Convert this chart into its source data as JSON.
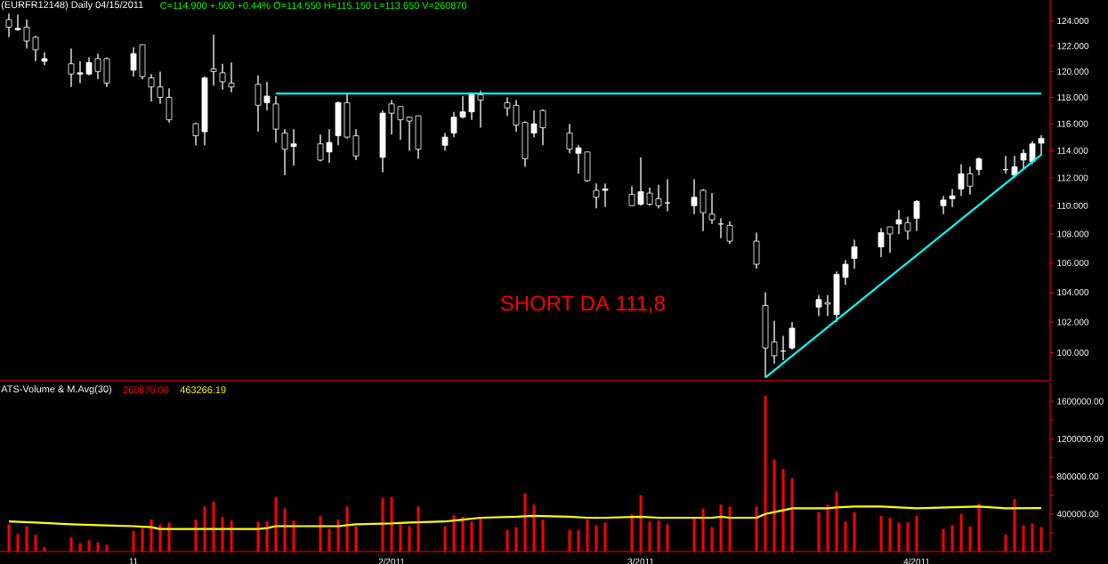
{
  "chart_data": [
    {
      "type": "candlestick",
      "title": "(EURFR12148) Daily   04/15/2011",
      "subtitle": "C=114.900  +.500  +0.44%  O=114.550  H=115.150  L=113.650  V=260870",
      "x": [
        "2010-12-20",
        "2010-12-21",
        "2010-12-22",
        "2010-12-23",
        "2010-12-24",
        "2010-12-27",
        "2010-12-28",
        "2010-12-29",
        "2010-12-30",
        "2010-12-31",
        "2011-01-03",
        "2011-01-04",
        "2011-01-05",
        "2011-01-06",
        "2011-01-07",
        "2011-01-10",
        "2011-01-11",
        "2011-01-12",
        "2011-01-13",
        "2011-01-14",
        "2011-01-17",
        "2011-01-18",
        "2011-01-19",
        "2011-01-20",
        "2011-01-21",
        "2011-01-24",
        "2011-01-25",
        "2011-01-26",
        "2011-01-27",
        "2011-01-28",
        "2011-01-31",
        "2011-02-01",
        "2011-02-02",
        "2011-02-03",
        "2011-02-04",
        "2011-02-07",
        "2011-02-08",
        "2011-02-09",
        "2011-02-10",
        "2011-02-11",
        "2011-02-14",
        "2011-02-15",
        "2011-02-16",
        "2011-02-17",
        "2011-02-18",
        "2011-02-21",
        "2011-02-22",
        "2011-02-23",
        "2011-02-24",
        "2011-02-25",
        "2011-02-28",
        "2011-03-01",
        "2011-03-02",
        "2011-03-03",
        "2011-03-04",
        "2011-03-07",
        "2011-03-08",
        "2011-03-09",
        "2011-03-10",
        "2011-03-11",
        "2011-03-14",
        "2011-03-15",
        "2011-03-16",
        "2011-03-17",
        "2011-03-18",
        "2011-03-21",
        "2011-03-22",
        "2011-03-23",
        "2011-03-24",
        "2011-03-25",
        "2011-03-28",
        "2011-03-29",
        "2011-03-30",
        "2011-03-31",
        "2011-04-01",
        "2011-04-04",
        "2011-04-05",
        "2011-04-06",
        "2011-04-07",
        "2011-04-08",
        "2011-04-11",
        "2011-04-12",
        "2011-04-13",
        "2011-04-14",
        "2011-04-15"
      ],
      "ohlc": [
        [
          124.1,
          124.6,
          122.7,
          123.5
        ],
        [
          123.3,
          124.5,
          123.2,
          123.4
        ],
        [
          123.5,
          124.1,
          121.8,
          122.4
        ],
        [
          122.7,
          122.8,
          120.8,
          121.7
        ],
        [
          120.8,
          121.5,
          120.5,
          121.0
        ],
        [
          120.6,
          121.8,
          118.8,
          119.8
        ],
        [
          119.8,
          120.8,
          119.1,
          119.9
        ],
        [
          119.8,
          121.1,
          119.7,
          120.7
        ],
        [
          121.0,
          121.4,
          119.4,
          120.0
        ],
        [
          121.0,
          121.1,
          118.8,
          119.1
        ],
        [
          120.1,
          121.9,
          119.6,
          121.4
        ],
        [
          122.1,
          122.1,
          119.4,
          119.6
        ],
        [
          119.5,
          119.8,
          117.7,
          118.8
        ],
        [
          118.8,
          120.0,
          117.5,
          118.0
        ],
        [
          118.0,
          118.7,
          116.1,
          116.3
        ],
        [
          116.0,
          116.1,
          114.4,
          115.1
        ],
        [
          115.4,
          119.6,
          114.4,
          119.5
        ],
        [
          120.2,
          122.9,
          118.9,
          120.0
        ],
        [
          119.9,
          120.6,
          118.6,
          119.2
        ],
        [
          119.1,
          120.7,
          118.4,
          118.8
        ],
        [
          119.0,
          119.7,
          115.4,
          117.4
        ],
        [
          117.6,
          119.2,
          117.0,
          118.1
        ],
        [
          117.5,
          118.1,
          114.6,
          115.6
        ],
        [
          115.3,
          115.6,
          112.2,
          114.1
        ],
        [
          114.3,
          115.6,
          112.9,
          114.5
        ],
        [
          114.5,
          115.2,
          113.2,
          113.3
        ],
        [
          113.9,
          115.6,
          113.1,
          114.6
        ],
        [
          115.1,
          117.7,
          114.4,
          117.6
        ],
        [
          117.6,
          118.3,
          114.9,
          115.0
        ],
        [
          115.1,
          115.6,
          113.3,
          113.6
        ],
        [
          113.5,
          117.0,
          112.4,
          116.8
        ],
        [
          117.5,
          117.8,
          115.2,
          116.8
        ],
        [
          117.3,
          117.3,
          114.8,
          116.3
        ],
        [
          116.5,
          116.5,
          114.0,
          116.2
        ],
        [
          116.6,
          116.6,
          113.4,
          114.1
        ],
        [
          114.4,
          115.3,
          114.0,
          115.0
        ],
        [
          115.3,
          116.9,
          115.0,
          116.5
        ],
        [
          116.5,
          118.1,
          116.4,
          116.9
        ],
        [
          116.9,
          118.4,
          116.3,
          118.3
        ],
        [
          118.2,
          118.5,
          115.7,
          117.8
        ],
        [
          117.6,
          118.0,
          116.6,
          117.2
        ],
        [
          117.4,
          117.8,
          115.4,
          115.9
        ],
        [
          116.1,
          116.2,
          112.8,
          113.4
        ],
        [
          115.3,
          117.0,
          115.0,
          116.0
        ],
        [
          117.0,
          117.1,
          114.4,
          115.7
        ],
        [
          115.3,
          116.0,
          113.8,
          114.1
        ],
        [
          113.8,
          114.4,
          112.3,
          114.2
        ],
        [
          113.9,
          113.9,
          111.7,
          111.8
        ],
        [
          111.1,
          111.6,
          109.8,
          110.6
        ],
        [
          111.1,
          111.6,
          109.9,
          111.2
        ],
        [
          110.8,
          111.4,
          110.0,
          110.0
        ],
        [
          110.1,
          113.5,
          110.0,
          111.0
        ],
        [
          110.9,
          111.3,
          110.0,
          110.1
        ],
        [
          110.5,
          111.5,
          109.8,
          110.0
        ],
        [
          110.2,
          111.9,
          109.6,
          110.2
        ],
        [
          110.0,
          111.9,
          109.4,
          110.6
        ],
        [
          111.1,
          111.2,
          108.2,
          109.5
        ],
        [
          109.4,
          110.9,
          108.7,
          109.0
        ],
        [
          108.7,
          109.1,
          107.7,
          108.7
        ],
        [
          108.6,
          108.9,
          107.3,
          107.5
        ],
        [
          107.5,
          108.1,
          105.6,
          105.9
        ],
        [
          103.1,
          104.0,
          98.4,
          100.3
        ],
        [
          100.7,
          102.1,
          99.3,
          99.8
        ],
        [
          100.1,
          101.1,
          99.5,
          100.1
        ],
        [
          100.3,
          102.0,
          100.2,
          101.6
        ],
        [
          103.0,
          103.8,
          102.4,
          103.5
        ],
        [
          103.3,
          103.8,
          102.4,
          103.2
        ],
        [
          102.5,
          105.4,
          102.0,
          105.2
        ],
        [
          105.0,
          106.2,
          104.5,
          105.9
        ],
        [
          106.3,
          107.6,
          105.6,
          107.1
        ],
        [
          107.1,
          108.4,
          106.4,
          108.1
        ],
        [
          108.5,
          108.5,
          106.7,
          108.0
        ],
        [
          108.7,
          109.7,
          108.0,
          109.0
        ],
        [
          108.8,
          109.2,
          107.6,
          108.2
        ],
        [
          109.1,
          110.4,
          108.2,
          110.3
        ],
        [
          110.0,
          110.7,
          109.4,
          110.4
        ],
        [
          110.5,
          111.2,
          109.9,
          110.7
        ],
        [
          111.2,
          113.0,
          110.7,
          112.3
        ],
        [
          112.3,
          112.8,
          110.8,
          111.4
        ],
        [
          112.6,
          113.5,
          112.2,
          113.4
        ],
        [
          112.6,
          113.6,
          112.3,
          112.6
        ],
        [
          112.2,
          113.6,
          112.0,
          112.8
        ],
        [
          113.3,
          114.1,
          112.6,
          113.8
        ],
        [
          113.2,
          114.7,
          113.0,
          114.5
        ],
        [
          114.55,
          115.15,
          113.65,
          114.9
        ]
      ],
      "color": "#ffffff",
      "series": [
        {
          "type": "line",
          "color": "#00ffff",
          "x": [
            "2011-01-19",
            "2011-04-15"
          ],
          "values": [
            118.3,
            118.3
          ]
        },
        {
          "type": "line",
          "color": "#00ffff",
          "x": [
            "2011-03-15",
            "2011-04-15"
          ],
          "values": [
            98.4,
            113.7
          ]
        }
      ],
      "annotations": [
        "SHORT DA 111,8"
      ],
      "xlim": [
        "2010-12-19",
        "2011-04-16"
      ],
      "ylim": [
        98.2,
        125.7
      ],
      "log": true,
      "tick_labels": "y",
      "yticks": [
        {
          "value": 100,
          "label": "100.000"
        },
        {
          "value": 102,
          "label": "102.000"
        },
        {
          "value": 104,
          "label": "104.000"
        },
        {
          "value": 106,
          "label": "106.000"
        },
        {
          "value": 108,
          "label": "108.000"
        },
        {
          "value": 110,
          "label": "110.000"
        },
        {
          "value": 112,
          "label": "112.000"
        },
        {
          "value": 114,
          "label": "114.000"
        },
        {
          "value": 116,
          "label": "116.000"
        },
        {
          "value": 118,
          "label": "118.000"
        },
        {
          "value": 120,
          "label": "120.000"
        },
        {
          "value": 122,
          "label": "122.000"
        },
        {
          "value": 124,
          "label": "124.000"
        }
      ]
    },
    {
      "type": "bar",
      "title": "ATS-Volume & M.Avg(30)",
      "annotations": [
        "260870.00",
        "463266.19"
      ],
      "x": [
        "2010-12-20",
        "2010-12-21",
        "2010-12-22",
        "2010-12-23",
        "2010-12-24",
        "2010-12-27",
        "2010-12-28",
        "2010-12-29",
        "2010-12-30",
        "2010-12-31",
        "2011-01-03",
        "2011-01-04",
        "2011-01-05",
        "2011-01-06",
        "2011-01-07",
        "2011-01-10",
        "2011-01-11",
        "2011-01-12",
        "2011-01-13",
        "2011-01-14",
        "2011-01-17",
        "2011-01-18",
        "2011-01-19",
        "2011-01-20",
        "2011-01-21",
        "2011-01-24",
        "2011-01-25",
        "2011-01-26",
        "2011-01-27",
        "2011-01-28",
        "2011-01-31",
        "2011-02-01",
        "2011-02-02",
        "2011-02-03",
        "2011-02-04",
        "2011-02-07",
        "2011-02-08",
        "2011-02-09",
        "2011-02-10",
        "2011-02-11",
        "2011-02-14",
        "2011-02-15",
        "2011-02-16",
        "2011-02-17",
        "2011-02-18",
        "2011-02-21",
        "2011-02-22",
        "2011-02-23",
        "2011-02-24",
        "2011-02-25",
        "2011-02-28",
        "2011-03-01",
        "2011-03-02",
        "2011-03-03",
        "2011-03-04",
        "2011-03-07",
        "2011-03-08",
        "2011-03-09",
        "2011-03-10",
        "2011-03-11",
        "2011-03-14",
        "2011-03-15",
        "2011-03-16",
        "2011-03-17",
        "2011-03-18",
        "2011-03-21",
        "2011-03-22",
        "2011-03-23",
        "2011-03-24",
        "2011-03-25",
        "2011-03-28",
        "2011-03-29",
        "2011-03-30",
        "2011-03-31",
        "2011-04-01",
        "2011-04-04",
        "2011-04-05",
        "2011-04-06",
        "2011-04-07",
        "2011-04-08",
        "2011-04-11",
        "2011-04-12",
        "2011-04-13",
        "2011-04-14",
        "2011-04-15"
      ],
      "series": [
        {
          "type": "bar",
          "color": "#ff0000",
          "values": [
            290000,
            190000,
            270000,
            180000,
            50000,
            150000,
            90000,
            120000,
            100000,
            70000,
            220000,
            250000,
            340000,
            290000,
            310000,
            340000,
            480000,
            530000,
            370000,
            330000,
            320000,
            320000,
            580000,
            460000,
            330000,
            380000,
            240000,
            340000,
            480000,
            270000,
            570000,
            580000,
            290000,
            270000,
            480000,
            270000,
            390000,
            370000,
            320000,
            350000,
            230000,
            260000,
            620000,
            500000,
            340000,
            230000,
            230000,
            340000,
            280000,
            310000,
            400000,
            600000,
            320000,
            330000,
            290000,
            350000,
            460000,
            260000,
            500000,
            480000,
            480000,
            1660000,
            980000,
            880000,
            780000,
            420000,
            500000,
            640000,
            320000,
            420000,
            380000,
            360000,
            310000,
            310000,
            380000,
            240000,
            280000,
            400000,
            270000,
            510000,
            180000,
            560000,
            280000,
            300000,
            260870
          ]
        },
        {
          "type": "line",
          "color": "#ffff00",
          "x": [
            "2010-12-20",
            "2010-12-23",
            "2010-12-27",
            "2010-12-30",
            "2011-01-03",
            "2011-01-05",
            "2011-01-06",
            "2011-01-17",
            "2011-01-18",
            "2011-01-19",
            "2011-01-26",
            "2011-01-27",
            "2011-01-28",
            "2011-02-01",
            "2011-02-03",
            "2011-02-07",
            "2011-02-09",
            "2011-02-11",
            "2011-02-15",
            "2011-02-17",
            "2011-02-21",
            "2011-02-23",
            "2011-02-25",
            "2011-03-01",
            "2011-03-03",
            "2011-03-07",
            "2011-03-09",
            "2011-03-10",
            "2011-03-11",
            "2011-03-14",
            "2011-03-15",
            "2011-03-16",
            "2011-03-17",
            "2011-03-18",
            "2011-03-22",
            "2011-03-23",
            "2011-03-25",
            "2011-03-28",
            "2011-03-30",
            "2011-04-01",
            "2011-04-08",
            "2011-04-11",
            "2011-04-15"
          ],
          "values": [
            320000,
            310000,
            290000,
            280000,
            270000,
            260000,
            240000,
            240000,
            250000,
            270000,
            270000,
            280000,
            290000,
            300000,
            310000,
            320000,
            340000,
            360000,
            370000,
            380000,
            370000,
            360000,
            360000,
            370000,
            360000,
            360000,
            360000,
            370000,
            360000,
            360000,
            400000,
            420000,
            440000,
            460000,
            460000,
            470000,
            480000,
            480000,
            470000,
            460000,
            480000,
            460000,
            463266.19
          ]
        }
      ],
      "xlim": [
        "2010-12-19",
        "2011-04-16"
      ],
      "ylim": [
        0,
        1800000
      ],
      "xticks": [
        {
          "value": "2011-01-03",
          "label": "11"
        },
        {
          "value": "2011-02-01",
          "label": "2/2011"
        },
        {
          "value": "2011-03-01",
          "label": "3/2011"
        },
        {
          "value": "2011-04-01",
          "label": "4/2011"
        }
      ],
      "yticks": [
        {
          "value": 200000,
          "label": null
        },
        {
          "value": 400000,
          "label": "400000.00"
        },
        {
          "value": 600000,
          "label": null
        },
        {
          "value": 800000,
          "label": "800000.00"
        },
        {
          "value": 1000000,
          "label": null
        },
        {
          "value": 1200000,
          "label": "1200000.00"
        },
        {
          "value": 1400000,
          "label": null
        },
        {
          "value": 1600000,
          "label": "1600000.00"
        }
      ]
    }
  ]
}
